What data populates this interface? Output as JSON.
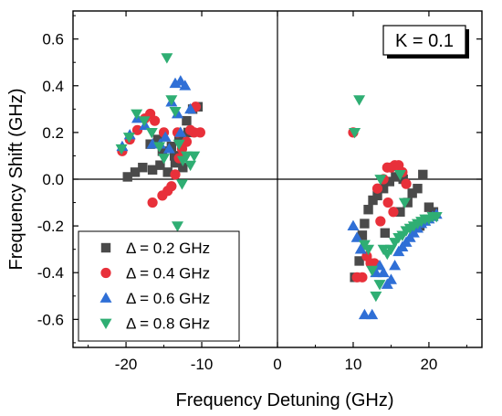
{
  "chart_data": {
    "type": "scatter",
    "xlabel": "Frequency Detuning (GHz)",
    "ylabel": "Frequency Shift (GHz)",
    "xlim": [
      -27,
      27
    ],
    "ylim": [
      -0.72,
      0.72
    ],
    "x_ticks": [
      -20,
      -10,
      0,
      10,
      20
    ],
    "x_tick_labels": [
      "-20",
      "-10",
      "0",
      "10",
      "20"
    ],
    "y_ticks": [
      -0.6,
      -0.4,
      -0.2,
      0.0,
      0.2,
      0.4,
      0.6
    ],
    "y_tick_labels": [
      "-0.6",
      "-0.4",
      "-0.2",
      "0.0",
      "0.2",
      "0.4",
      "0.6"
    ],
    "grid": false,
    "zero_lines": true,
    "legend_position": "bottom-left",
    "annotation": "K = 0.1",
    "series": [
      {
        "name": "Δ = 0.2 GHz",
        "marker": "square",
        "color": "#4a4a4a",
        "points": [
          [
            -19.8,
            0.01
          ],
          [
            -18.8,
            0.03
          ],
          [
            -17.8,
            0.05
          ],
          [
            -16.5,
            0.04
          ],
          [
            -15.5,
            0.06
          ],
          [
            -14.5,
            0.03
          ],
          [
            -13.5,
            0.07
          ],
          [
            -12.5,
            0.05
          ],
          [
            -16.8,
            0.15
          ],
          [
            -15.2,
            0.12
          ],
          [
            -14.0,
            0.14
          ],
          [
            -13.0,
            0.18
          ],
          [
            -12.0,
            0.25
          ],
          [
            -11.2,
            0.3
          ],
          [
            -10.5,
            0.31
          ],
          [
            -11.8,
            0.2
          ],
          [
            -12.8,
            0.1
          ],
          [
            -13.6,
            0.1
          ],
          [
            -15.8,
            0.17
          ],
          [
            10.2,
            -0.42
          ],
          [
            10.8,
            -0.35
          ],
          [
            11.2,
            -0.24
          ],
          [
            11.5,
            -0.19
          ],
          [
            12.0,
            -0.13
          ],
          [
            12.6,
            -0.09
          ],
          [
            13.2,
            -0.07
          ],
          [
            14.0,
            -0.04
          ],
          [
            14.8,
            -0.01
          ],
          [
            15.6,
            0.01
          ],
          [
            16.6,
            0.0
          ],
          [
            17.2,
            -0.1
          ],
          [
            17.8,
            -0.06
          ],
          [
            18.5,
            -0.04
          ],
          [
            19.2,
            0.02
          ],
          [
            20.0,
            -0.12
          ],
          [
            20.6,
            -0.14
          ],
          [
            14.2,
            -0.23
          ],
          [
            16.2,
            -0.14
          ],
          [
            18.8,
            -0.2
          ]
        ]
      },
      {
        "name": "Δ = 0.4 GHz",
        "marker": "circle",
        "color": "#e8303a",
        "points": [
          [
            -20.5,
            0.12
          ],
          [
            -19.5,
            0.17
          ],
          [
            -18.5,
            0.21
          ],
          [
            -17.5,
            0.26
          ],
          [
            -16.8,
            0.28
          ],
          [
            -16.2,
            0.25
          ],
          [
            -15.0,
            0.2
          ],
          [
            -14.5,
            -0.05
          ],
          [
            -14.0,
            -0.03
          ],
          [
            -13.5,
            0.02
          ],
          [
            -13.0,
            0.09
          ],
          [
            -12.6,
            0.13
          ],
          [
            -12.0,
            0.16
          ],
          [
            -11.5,
            0.21
          ],
          [
            -11.0,
            0.2
          ],
          [
            -10.2,
            0.2
          ],
          [
            -10.8,
            0.31
          ],
          [
            -16.5,
            -0.1
          ],
          [
            -15.2,
            -0.07
          ],
          [
            -13.2,
            0.2
          ],
          [
            10.0,
            0.2
          ],
          [
            10.5,
            -0.42
          ],
          [
            11.2,
            -0.42
          ],
          [
            11.8,
            -0.33
          ],
          [
            12.3,
            -0.36
          ],
          [
            12.8,
            -0.36
          ],
          [
            13.2,
            -0.04
          ],
          [
            14.0,
            0.0
          ],
          [
            14.5,
            0.05
          ],
          [
            15.0,
            0.05
          ],
          [
            15.5,
            0.06
          ],
          [
            16.0,
            0.06
          ],
          [
            16.5,
            0.03
          ],
          [
            17.0,
            -0.02
          ],
          [
            13.6,
            -0.18
          ],
          [
            14.6,
            -0.1
          ],
          [
            15.3,
            -0.14
          ]
        ]
      },
      {
        "name": "Δ = 0.6 GHz",
        "marker": "triangle-up",
        "color": "#2f6fd6",
        "points": [
          [
            -20.5,
            0.14
          ],
          [
            -19.5,
            0.19
          ],
          [
            -18.5,
            0.26
          ],
          [
            -17.5,
            0.23
          ],
          [
            -16.5,
            0.15
          ],
          [
            -15.5,
            0.15
          ],
          [
            -14.8,
            0.18
          ],
          [
            -14.0,
            0.33
          ],
          [
            -13.5,
            0.41
          ],
          [
            -12.8,
            0.42
          ],
          [
            -12.2,
            0.4
          ],
          [
            -11.5,
            0.3
          ],
          [
            -12.8,
            0.2
          ],
          [
            -13.2,
            0.28
          ],
          [
            -14.3,
            0.13
          ],
          [
            10.0,
            -0.2
          ],
          [
            10.5,
            -0.25
          ],
          [
            11.0,
            -0.3
          ],
          [
            11.5,
            -0.58
          ],
          [
            12.5,
            -0.58
          ],
          [
            13.0,
            -0.4
          ],
          [
            13.5,
            -0.37
          ],
          [
            14.0,
            -0.4
          ],
          [
            14.5,
            -0.45
          ],
          [
            15.0,
            -0.43
          ],
          [
            15.5,
            -0.37
          ],
          [
            16.0,
            -0.31
          ],
          [
            16.5,
            -0.29
          ],
          [
            17.0,
            -0.27
          ],
          [
            17.5,
            -0.25
          ],
          [
            18.0,
            -0.23
          ],
          [
            18.5,
            -0.21
          ],
          [
            19.0,
            -0.19
          ],
          [
            19.5,
            -0.18
          ],
          [
            20.0,
            -0.17
          ],
          [
            20.5,
            -0.16
          ],
          [
            21.0,
            -0.15
          ]
        ]
      },
      {
        "name": "Δ = 0.8 GHz",
        "marker": "triangle-down",
        "color": "#2fae73",
        "points": [
          [
            -20.6,
            0.13
          ],
          [
            -19.6,
            0.18
          ],
          [
            -18.6,
            0.28
          ],
          [
            -17.6,
            0.25
          ],
          [
            -16.6,
            0.2
          ],
          [
            -15.6,
            0.14
          ],
          [
            -14.6,
            0.52
          ],
          [
            -14.0,
            0.34
          ],
          [
            -13.5,
            0.29
          ],
          [
            -13.0,
            0.15
          ],
          [
            -12.5,
            0.08
          ],
          [
            -12.0,
            0.1
          ],
          [
            -11.5,
            0.06
          ],
          [
            -11.0,
            0.1
          ],
          [
            -13.2,
            -0.2
          ],
          [
            -15.0,
            0.09
          ],
          [
            -12.6,
            -0.02
          ],
          [
            10.2,
            0.2
          ],
          [
            10.8,
            0.34
          ],
          [
            11.5,
            -0.28
          ],
          [
            12.0,
            -0.3
          ],
          [
            12.5,
            -0.39
          ],
          [
            13.0,
            -0.5
          ],
          [
            13.5,
            -0.45
          ],
          [
            14.0,
            -0.3
          ],
          [
            14.5,
            -0.32
          ],
          [
            15.0,
            -0.3
          ],
          [
            15.5,
            -0.27
          ],
          [
            16.0,
            -0.25
          ],
          [
            16.5,
            -0.24
          ],
          [
            17.0,
            -0.22
          ],
          [
            17.5,
            -0.21
          ],
          [
            18.0,
            -0.2
          ],
          [
            18.5,
            -0.19
          ],
          [
            19.0,
            -0.18
          ],
          [
            19.5,
            -0.17
          ],
          [
            20.0,
            -0.17
          ],
          [
            20.5,
            -0.16
          ],
          [
            21.0,
            -0.16
          ],
          [
            16.2,
            0.02
          ],
          [
            16.8,
            -0.1
          ],
          [
            13.6,
            0.0
          ]
        ]
      }
    ]
  }
}
